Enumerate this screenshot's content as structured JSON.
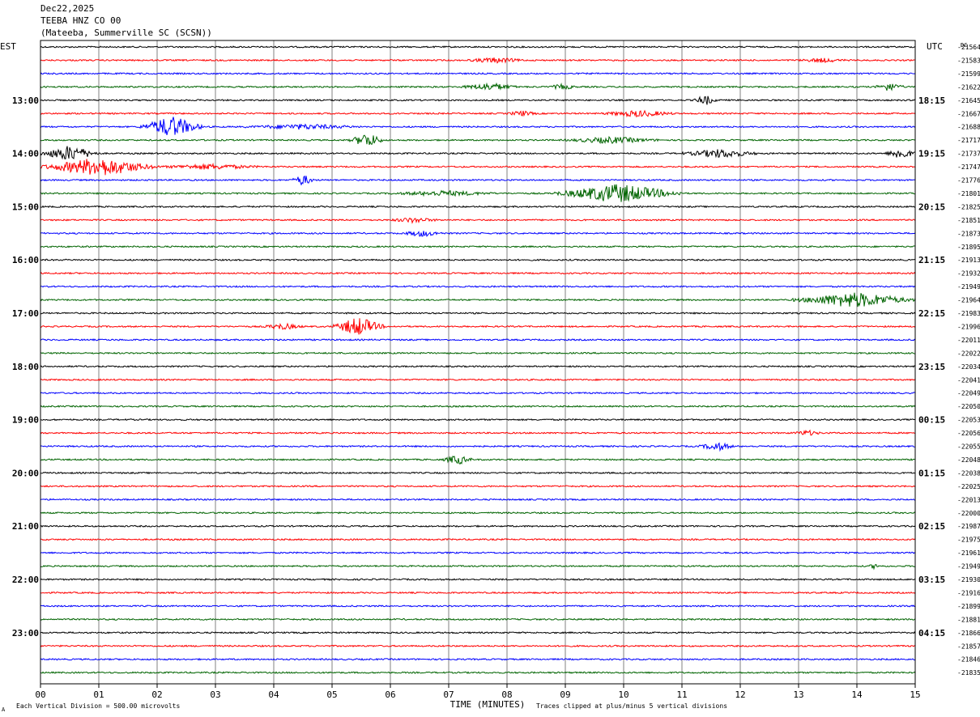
{
  "header": {
    "date": "Dec22,2025",
    "station": "TEEBA HNZ CO 00",
    "location": "(Mateeba, Summerville SC (SCSN))"
  },
  "left_axis_title": "EST",
  "right_axis_title": "UTC",
  "dc_title": "DC",
  "footer": {
    "scale_note": "Each Vertical Division =  500.00 microvolts",
    "clip_note": "Traces clipped at plus/minus 5 vertical divisions",
    "mark": "A"
  },
  "colors": {
    "cycle": [
      "#000000",
      "#ff0000",
      "#0000ff",
      "#006400"
    ],
    "grid": "#808080"
  },
  "chart_data": {
    "type": "line",
    "xlabel": "TIME (MINUTES)",
    "xlim": [
      0,
      15
    ],
    "x_tick_labels": [
      "00",
      "01",
      "02",
      "03",
      "04",
      "05",
      "06",
      "07",
      "08",
      "09",
      "10",
      "11",
      "12",
      "13",
      "14",
      "15"
    ],
    "left_hour_labels": [
      "13:00",
      "14:00",
      "15:00",
      "16:00",
      "17:00",
      "18:00",
      "19:00",
      "20:00",
      "21:00",
      "22:00",
      "23:00"
    ],
    "right_hour_labels": [
      "18:15",
      "19:15",
      "20:15",
      "21:15",
      "22:15",
      "23:15",
      "00:15",
      "01:15",
      "02:15",
      "03:15",
      "04:15"
    ],
    "dc_offsets": [
      "-21564",
      "-21583",
      "-21599",
      "-21622",
      "-21645",
      "-21667",
      "-21688",
      "-21717",
      "-21737",
      "-21747",
      "-21776",
      "-21801",
      "-21825",
      "-21851",
      "-21873",
      "-21895",
      "-21913",
      "-21932",
      "-21949",
      "-21964",
      "-21983",
      "-21996",
      "-22011",
      "-22022",
      "-22034",
      "-22041",
      "-22049",
      "-22050",
      "-22053",
      "-22056",
      "-22055",
      "-22048",
      "-22038",
      "-22025",
      "-22013",
      "-22000",
      "-21987",
      "-21975",
      "-21961",
      "-21949",
      "-21930",
      "-21916",
      "-21899",
      "-21881",
      "-21866",
      "-21857",
      "-21846",
      "-21835"
    ],
    "events": [
      {
        "trace": 1,
        "start": 7.3,
        "end": 8.3,
        "amp": 0.4
      },
      {
        "trace": 1,
        "start": 13.0,
        "end": 13.8,
        "amp": 0.3
      },
      {
        "trace": 3,
        "start": 7.2,
        "end": 8.2,
        "amp": 0.6
      },
      {
        "trace": 3,
        "start": 8.7,
        "end": 9.2,
        "amp": 0.4
      },
      {
        "trace": 3,
        "start": 14.3,
        "end": 14.8,
        "amp": 0.7
      },
      {
        "trace": 4,
        "start": 11.2,
        "end": 11.6,
        "amp": 0.8
      },
      {
        "trace": 5,
        "start": 8.0,
        "end": 8.5,
        "amp": 0.4
      },
      {
        "trace": 5,
        "start": 9.6,
        "end": 10.9,
        "amp": 0.5
      },
      {
        "trace": 6,
        "start": 1.7,
        "end": 2.8,
        "amp": 1.8
      },
      {
        "trace": 6,
        "start": 3.5,
        "end": 5.5,
        "amp": 0.4
      },
      {
        "trace": 7,
        "start": 5.3,
        "end": 5.9,
        "amp": 1.2
      },
      {
        "trace": 7,
        "start": 9.0,
        "end": 10.6,
        "amp": 0.5
      },
      {
        "trace": 8,
        "start": 0.0,
        "end": 1.0,
        "amp": 1.3
      },
      {
        "trace": 8,
        "start": 11.0,
        "end": 12.3,
        "amp": 0.7
      },
      {
        "trace": 8,
        "start": 14.5,
        "end": 15.0,
        "amp": 1.0
      },
      {
        "trace": 9,
        "start": 0.0,
        "end": 2.0,
        "amp": 1.6
      },
      {
        "trace": 9,
        "start": 2.0,
        "end": 3.8,
        "amp": 0.4
      },
      {
        "trace": 10,
        "start": 4.3,
        "end": 4.7,
        "amp": 0.9
      },
      {
        "trace": 11,
        "start": 6.0,
        "end": 7.8,
        "amp": 0.4
      },
      {
        "trace": 11,
        "start": 8.8,
        "end": 11.0,
        "amp": 1.6
      },
      {
        "trace": 13,
        "start": 6.0,
        "end": 6.8,
        "amp": 0.4
      },
      {
        "trace": 14,
        "start": 6.2,
        "end": 6.9,
        "amp": 0.5
      },
      {
        "trace": 19,
        "start": 12.9,
        "end": 15.0,
        "amp": 1.3
      },
      {
        "trace": 21,
        "start": 3.8,
        "end": 4.5,
        "amp": 0.5
      },
      {
        "trace": 21,
        "start": 5.0,
        "end": 5.9,
        "amp": 1.6
      },
      {
        "trace": 29,
        "start": 12.9,
        "end": 13.4,
        "amp": 0.4
      },
      {
        "trace": 30,
        "start": 11.3,
        "end": 11.9,
        "amp": 0.7
      },
      {
        "trace": 31,
        "start": 6.9,
        "end": 7.4,
        "amp": 0.8
      },
      {
        "trace": 39,
        "start": 14.2,
        "end": 14.4,
        "amp": 0.4
      }
    ]
  }
}
